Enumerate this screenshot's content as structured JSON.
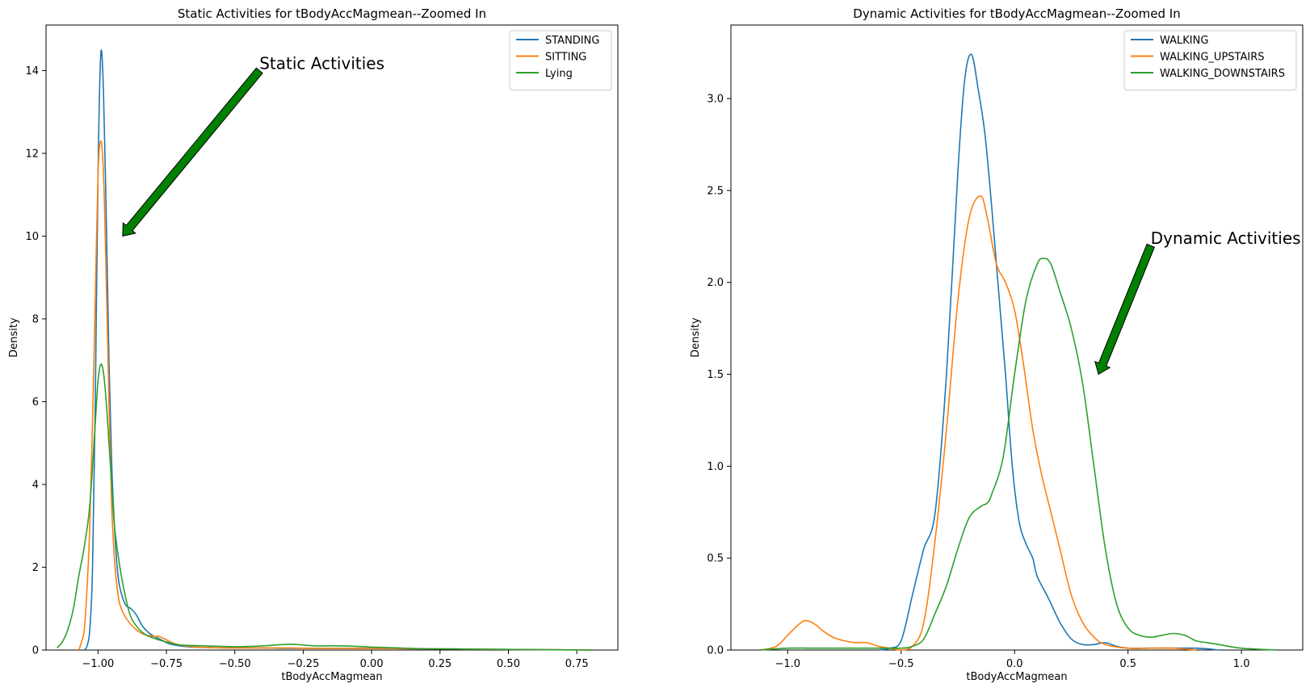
{
  "palette": {
    "blue": "#1f77b4",
    "orange": "#ff7f0e",
    "green": "#2ca02c",
    "arrow": "#008000"
  },
  "chart_data": [
    {
      "type": "line",
      "title": "Static Activities for tBodyAccMagmean--Zoomed In",
      "xlabel": "tBodyAccMagmean",
      "ylabel": "Density",
      "xlim": [
        -1.19,
        0.9
      ],
      "ylim": [
        0,
        15.1
      ],
      "xticks": [
        -1.0,
        -0.75,
        -0.5,
        -0.25,
        0.0,
        0.25,
        0.5,
        0.75
      ],
      "xtick_labels": [
        "−1.00",
        "−0.75",
        "−0.50",
        "−0.25",
        "0.00",
        "0.25",
        "0.50",
        "0.75"
      ],
      "yticks": [
        0,
        2,
        4,
        6,
        8,
        10,
        12,
        14
      ],
      "ytick_labels": [
        "0",
        "2",
        "4",
        "6",
        "8",
        "10",
        "12",
        "14"
      ],
      "grid": false,
      "legend_position": "top-right",
      "series": [
        {
          "name": "STANDING",
          "color": "#1f77b4",
          "x": [
            -1.05,
            -1.04,
            -1.03,
            -1.02,
            -1.01,
            -1.0,
            -0.99,
            -0.98,
            -0.97,
            -0.96,
            -0.95,
            -0.94,
            -0.93,
            -0.92,
            -0.9,
            -0.88,
            -0.86,
            -0.84,
            -0.82,
            -0.8,
            -0.77,
            -0.74,
            -0.7,
            -0.65,
            -0.6,
            -0.5,
            -0.4,
            -0.3,
            -0.2,
            -0.1,
            0.0,
            0.2,
            0.4,
            0.6,
            0.8
          ],
          "y": [
            0.0,
            0.1,
            0.5,
            2.0,
            6.0,
            11.5,
            14.4,
            13.5,
            10.5,
            7.0,
            4.5,
            3.0,
            2.0,
            1.5,
            1.1,
            1.0,
            0.85,
            0.6,
            0.45,
            0.35,
            0.25,
            0.15,
            0.1,
            0.07,
            0.06,
            0.05,
            0.05,
            0.04,
            0.04,
            0.04,
            0.04,
            0.03,
            0.02,
            0.01,
            0.0
          ]
        },
        {
          "name": "SITTING",
          "color": "#ff7f0e",
          "x": [
            -1.07,
            -1.06,
            -1.05,
            -1.04,
            -1.03,
            -1.02,
            -1.01,
            -1.0,
            -0.99,
            -0.98,
            -0.97,
            -0.96,
            -0.95,
            -0.94,
            -0.93,
            -0.92,
            -0.9,
            -0.87,
            -0.84,
            -0.8,
            -0.78,
            -0.76,
            -0.73,
            -0.7,
            -0.65,
            -0.6,
            -0.5,
            -0.4,
            -0.3,
            -0.2,
            -0.1,
            0.0,
            0.2,
            0.4,
            0.6,
            0.8
          ],
          "y": [
            0.0,
            0.2,
            0.5,
            1.5,
            3.0,
            5.5,
            8.5,
            11.5,
            12.3,
            11.5,
            9.0,
            6.0,
            3.5,
            2.2,
            1.5,
            1.1,
            0.8,
            0.55,
            0.4,
            0.33,
            0.33,
            0.28,
            0.18,
            0.12,
            0.08,
            0.06,
            0.05,
            0.05,
            0.05,
            0.04,
            0.04,
            0.04,
            0.03,
            0.02,
            0.01,
            0.0
          ]
        },
        {
          "name": "Lying",
          "color": "#2ca02c",
          "x": [
            -1.15,
            -1.13,
            -1.11,
            -1.09,
            -1.07,
            -1.05,
            -1.03,
            -1.01,
            -1.0,
            -0.99,
            -0.98,
            -0.97,
            -0.96,
            -0.95,
            -0.94,
            -0.92,
            -0.9,
            -0.88,
            -0.85,
            -0.82,
            -0.78,
            -0.74,
            -0.7,
            -0.6,
            -0.5,
            -0.4,
            -0.3,
            -0.25,
            -0.2,
            -0.1,
            0.0,
            0.1,
            0.2,
            0.4,
            0.6,
            0.8
          ],
          "y": [
            0.05,
            0.2,
            0.5,
            1.0,
            1.8,
            2.5,
            3.5,
            5.5,
            6.5,
            6.9,
            6.7,
            6.0,
            5.0,
            4.0,
            3.0,
            2.0,
            1.3,
            0.8,
            0.5,
            0.35,
            0.25,
            0.18,
            0.12,
            0.1,
            0.08,
            0.1,
            0.14,
            0.12,
            0.1,
            0.1,
            0.07,
            0.05,
            0.03,
            0.02,
            0.01,
            0.0
          ]
        }
      ],
      "annotation": {
        "text": "Static Activities",
        "text_x": -0.41,
        "text_y": 14.0,
        "arrow_tip_x": -0.91,
        "arrow_tip_y": 10.0
      }
    },
    {
      "type": "line",
      "title": "Dynamic Activities for tBodyAccMagmean--Zoomed In",
      "xlabel": "tBodyAccMagmean",
      "ylabel": "Density",
      "xlim": [
        -1.25,
        1.27
      ],
      "ylim": [
        0,
        3.4
      ],
      "xticks": [
        -1.0,
        -0.5,
        0.0,
        0.5,
        1.0
      ],
      "xtick_labels": [
        "−1.0",
        "−0.5",
        "0.0",
        "0.5",
        "1.0"
      ],
      "yticks": [
        0.0,
        0.5,
        1.0,
        1.5,
        2.0,
        2.5,
        3.0
      ],
      "ytick_labels": [
        "0.0",
        "0.5",
        "1.0",
        "1.5",
        "2.0",
        "2.5",
        "3.0"
      ],
      "grid": false,
      "legend_position": "top-right",
      "series": [
        {
          "name": "WALKING",
          "color": "#1f77b4",
          "x": [
            -0.6,
            -0.55,
            -0.5,
            -0.45,
            -0.4,
            -0.35,
            -0.3,
            -0.25,
            -0.22,
            -0.19,
            -0.16,
            -0.13,
            -0.1,
            -0.07,
            -0.04,
            -0.01,
            0.02,
            0.05,
            0.08,
            0.1,
            0.15,
            0.2,
            0.25,
            0.3,
            0.35,
            0.4,
            0.45,
            0.5,
            0.6,
            0.8,
            0.9
          ],
          "y": [
            0.0,
            0.01,
            0.05,
            0.3,
            0.55,
            0.75,
            1.5,
            2.6,
            3.1,
            3.24,
            3.05,
            2.8,
            2.4,
            1.95,
            1.5,
            1.0,
            0.7,
            0.58,
            0.5,
            0.4,
            0.28,
            0.15,
            0.06,
            0.03,
            0.03,
            0.04,
            0.02,
            0.01,
            0.01,
            0.01,
            0.0
          ]
        },
        {
          "name": "WALKING_UPSTAIRS",
          "color": "#ff7f0e",
          "x": [
            -1.12,
            -1.05,
            -1.0,
            -0.95,
            -0.92,
            -0.88,
            -0.84,
            -0.8,
            -0.75,
            -0.7,
            -0.65,
            -0.6,
            -0.55,
            -0.5,
            -0.45,
            -0.4,
            -0.35,
            -0.3,
            -0.25,
            -0.2,
            -0.15,
            -0.12,
            -0.08,
            -0.04,
            0.0,
            0.04,
            0.08,
            0.12,
            0.16,
            0.2,
            0.25,
            0.3,
            0.35,
            0.4,
            0.5,
            0.6,
            0.7,
            0.8
          ],
          "y": [
            0.0,
            0.02,
            0.08,
            0.14,
            0.16,
            0.14,
            0.1,
            0.07,
            0.05,
            0.04,
            0.04,
            0.02,
            0.01,
            0.0,
            0.02,
            0.15,
            0.6,
            1.2,
            1.9,
            2.35,
            2.47,
            2.35,
            2.1,
            2.0,
            1.85,
            1.55,
            1.2,
            0.95,
            0.75,
            0.55,
            0.3,
            0.15,
            0.07,
            0.03,
            0.01,
            0.01,
            0.01,
            0.0
          ]
        },
        {
          "name": "WALKING_DOWNSTAIRS",
          "color": "#2ca02c",
          "x": [
            -1.12,
            -1.0,
            -0.9,
            -0.8,
            -0.7,
            -0.6,
            -0.5,
            -0.45,
            -0.4,
            -0.35,
            -0.3,
            -0.25,
            -0.2,
            -0.15,
            -0.12,
            -0.1,
            -0.05,
            0.0,
            0.05,
            0.1,
            0.13,
            0.16,
            0.2,
            0.25,
            0.3,
            0.35,
            0.4,
            0.45,
            0.5,
            0.55,
            0.6,
            0.65,
            0.7,
            0.75,
            0.8,
            0.85,
            0.9,
            1.0,
            1.15
          ],
          "y": [
            0.0,
            0.01,
            0.01,
            0.01,
            0.01,
            0.01,
            0.01,
            0.02,
            0.06,
            0.2,
            0.35,
            0.55,
            0.72,
            0.78,
            0.8,
            0.85,
            1.05,
            1.5,
            1.9,
            2.1,
            2.13,
            2.1,
            1.95,
            1.75,
            1.45,
            1.0,
            0.55,
            0.25,
            0.12,
            0.08,
            0.07,
            0.08,
            0.09,
            0.08,
            0.05,
            0.04,
            0.03,
            0.01,
            0.0
          ]
        }
      ],
      "annotation": {
        "text": "Dynamic Activities",
        "text_x": 0.6,
        "text_y": 2.2,
        "arrow_tip_x": 0.37,
        "arrow_tip_y": 1.5
      }
    }
  ]
}
